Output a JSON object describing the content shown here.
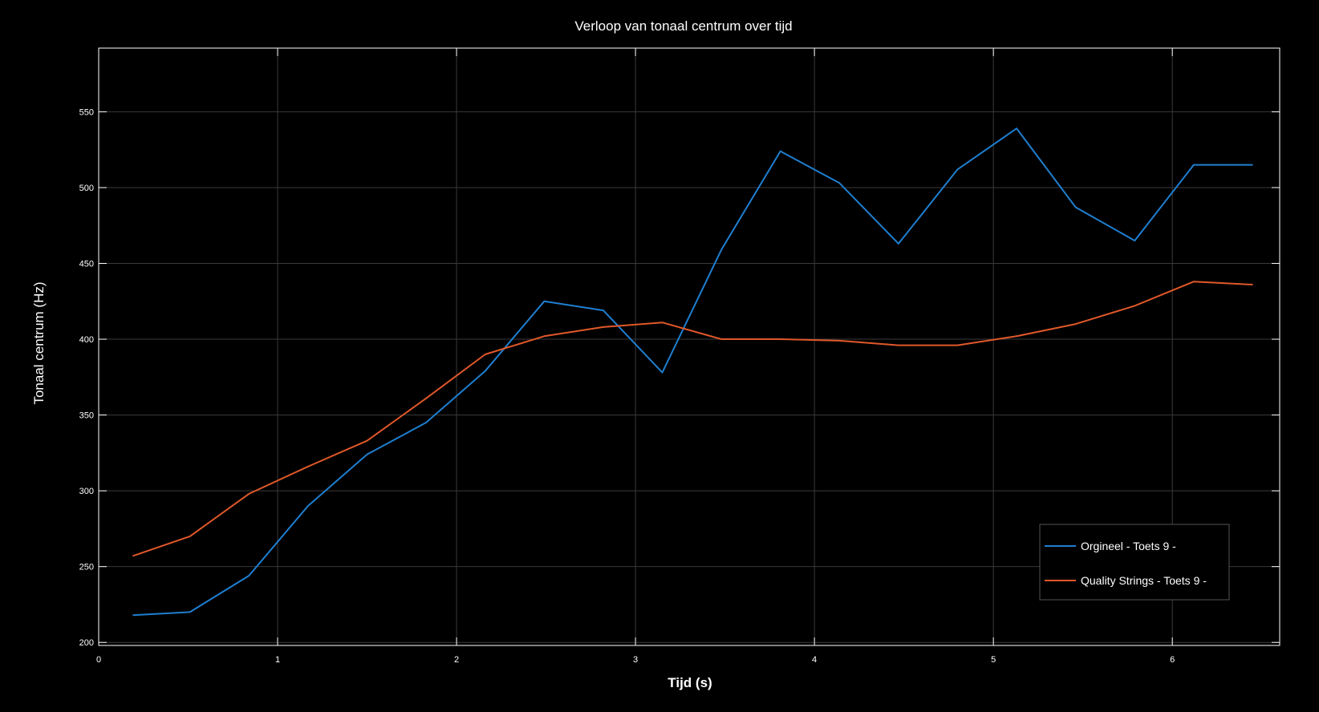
{
  "chart_data": {
    "type": "line",
    "title": "Verloop van tonaal centrum over tijd",
    "xlabel": "Tijd (s)",
    "ylabel": "Tonaal centrum (Hz)",
    "xlim": [
      0,
      6.6
    ],
    "ylim": [
      198,
      592
    ],
    "xticks": [
      0,
      1,
      2,
      3,
      4,
      5,
      6
    ],
    "yticks": [
      200,
      250,
      300,
      350,
      400,
      450,
      500,
      550
    ],
    "grid": true,
    "legend_position": "bottom-right",
    "background": "#000000",
    "series": [
      {
        "name": "Orgineel - Toets 9 -",
        "color": "#1f7fd0",
        "x": [
          0.19,
          0.51,
          0.84,
          1.17,
          1.5,
          1.83,
          2.16,
          2.49,
          2.82,
          3.15,
          3.48,
          3.81,
          4.14,
          4.47,
          4.8,
          5.13,
          5.46,
          5.79,
          6.12,
          6.45
        ],
        "y": [
          218,
          220,
          244,
          290,
          324,
          345,
          379,
          425,
          419,
          378,
          459,
          524,
          503,
          463,
          512,
          539,
          487,
          465,
          515,
          515
        ]
      },
      {
        "name": "Quality Strings - Toets 9 -",
        "color": "#e0582a",
        "x": [
          0.19,
          0.51,
          0.84,
          1.17,
          1.5,
          1.83,
          2.16,
          2.49,
          2.82,
          3.15,
          3.48,
          3.81,
          4.14,
          4.47,
          4.8,
          5.13,
          5.46,
          5.79,
          6.12,
          6.45
        ],
        "y": [
          257,
          270,
          298,
          316,
          333,
          361,
          390,
          402,
          408,
          411,
          400,
          400,
          399,
          396,
          396,
          402,
          410,
          422,
          438,
          436
        ]
      }
    ]
  }
}
